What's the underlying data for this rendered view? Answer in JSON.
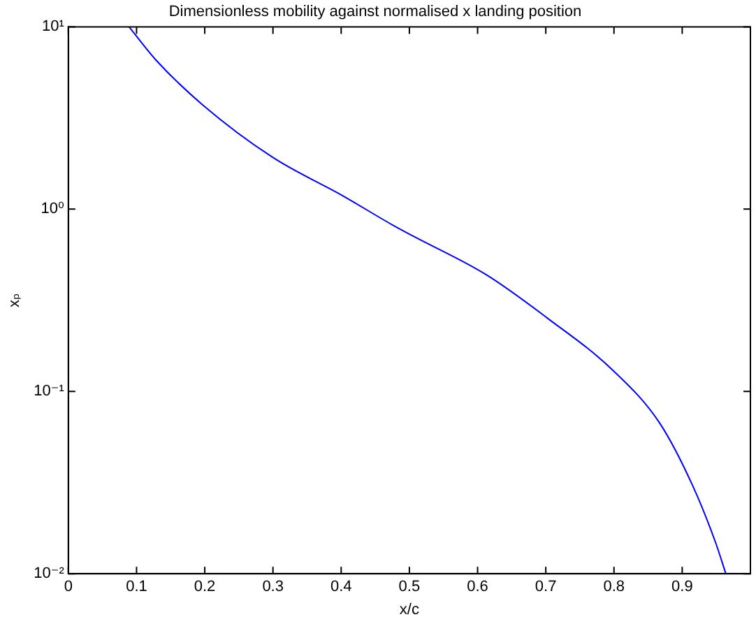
{
  "chart_data": {
    "type": "line",
    "title": "Dimensionless mobility against normalised x landing position",
    "xlabel": "x/c",
    "ylabel": "xₚ",
    "log": "y",
    "grid": false,
    "legend": false,
    "marker": "none",
    "line_style": "solid",
    "xlim": [
      0,
      1
    ],
    "xticks": [
      0,
      0.1,
      0.2,
      0.3,
      0.4,
      0.5,
      0.6,
      0.7,
      0.8,
      0.9,
      {
        "value": 1,
        "label": null
      }
    ],
    "ylim": [
      0.01,
      10
    ],
    "yticks": [
      {
        "value": 0.01,
        "label": "10⁻²"
      },
      {
        "value": 0.1,
        "label": "10⁻¹"
      },
      {
        "value": 1,
        "label": "10⁰"
      },
      {
        "value": 10,
        "label": "10¹"
      }
    ],
    "series": [
      {
        "color": "#0000ff",
        "x": [
          0.089,
          0.128,
          0.197,
          0.3,
          0.403,
          0.475,
          0.506,
          0.613,
          0.702,
          0.798,
          0.867,
          0.915,
          0.949,
          0.964
        ],
        "values": [
          10,
          6.6,
          3.73,
          1.92,
          1.18,
          0.82,
          0.71,
          0.436,
          0.253,
          0.131,
          0.067,
          0.0306,
          0.0148,
          0.01
        ]
      }
    ]
  }
}
